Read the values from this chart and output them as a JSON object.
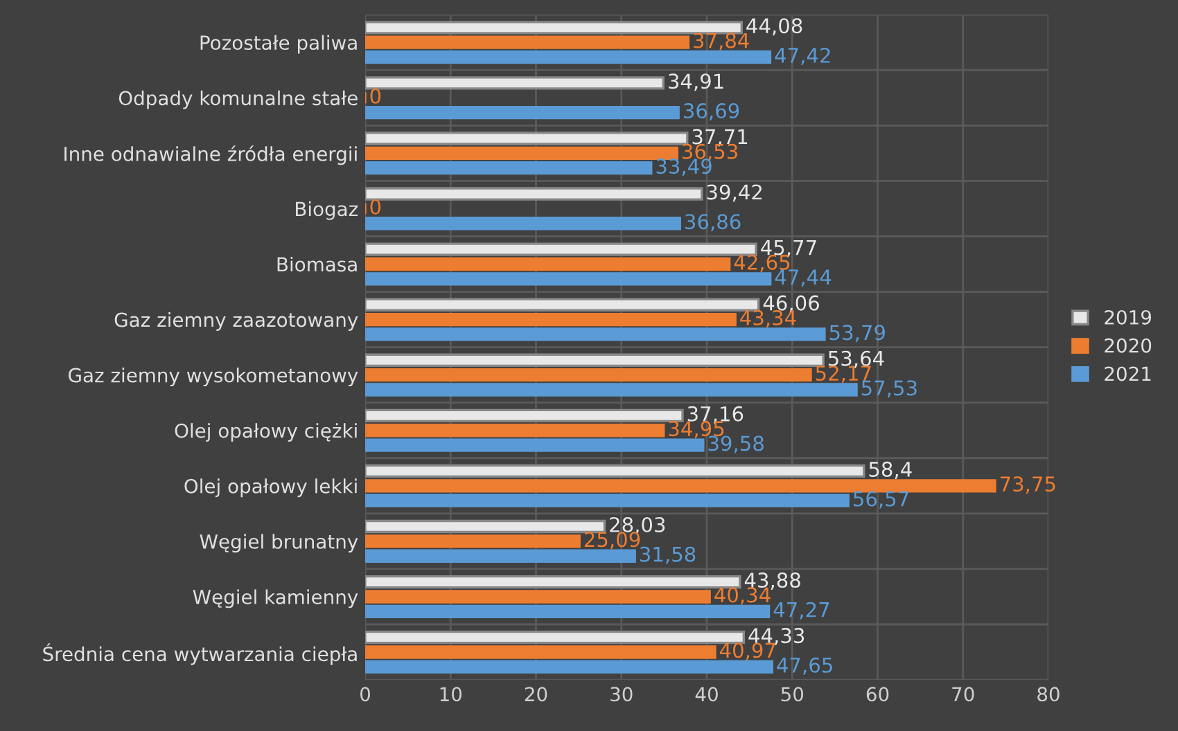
{
  "chart_data": {
    "type": "bar",
    "orientation": "horizontal",
    "categories": [
      "Pozostałe paliwa",
      "Odpady komunalne stałe",
      "Inne odnawialne źródła energii",
      "Biogaz",
      "Biomasa",
      "Gaz ziemny zaazotowany",
      "Gaz ziemny wysokometanowy",
      "Olej opałowy ciężki",
      "Olej opałowy lekki",
      "Węgiel brunatny",
      "Węgiel kamienny",
      "Średnia cena wytwarzania ciepła"
    ],
    "series": [
      {
        "name": "2019",
        "color": "#e8e8e8",
        "values": [
          44.08,
          34.91,
          37.71,
          39.42,
          45.77,
          46.06,
          53.64,
          37.16,
          58.4,
          28.03,
          43.88,
          44.33
        ],
        "value_labels": [
          "44,08",
          "34,91",
          "37,71",
          "39,42",
          "45,77",
          "46,06",
          "53,64",
          "37,16",
          "58,4",
          "28,03",
          "43,88",
          "44,33"
        ]
      },
      {
        "name": "2020",
        "color": "#ed7d31",
        "values": [
          37.84,
          0,
          36.53,
          0,
          42.65,
          43.34,
          52.17,
          34.95,
          73.75,
          25.09,
          40.34,
          40.97
        ],
        "value_labels": [
          "37,84",
          "0",
          "36,53",
          "0",
          "42,65",
          "43,34",
          "52,17",
          "34,95",
          "73,75",
          "25,09",
          "40,34",
          "40,97"
        ]
      },
      {
        "name": "2021",
        "color": "#5b9bd5",
        "values": [
          47.42,
          36.69,
          33.49,
          36.86,
          47.44,
          53.79,
          57.53,
          39.58,
          56.57,
          31.58,
          47.27,
          47.65
        ],
        "value_labels": [
          "47,42",
          "36,69",
          "33,49",
          "36,86",
          "47,44",
          "53,79",
          "57,53",
          "39,58",
          "56,57",
          "31,58",
          "47,27",
          "47,65"
        ]
      }
    ],
    "xlim": [
      0,
      80
    ],
    "xticks": [
      0,
      10,
      20,
      30,
      40,
      50,
      60,
      70,
      80
    ],
    "grid": true,
    "legend": "right"
  }
}
